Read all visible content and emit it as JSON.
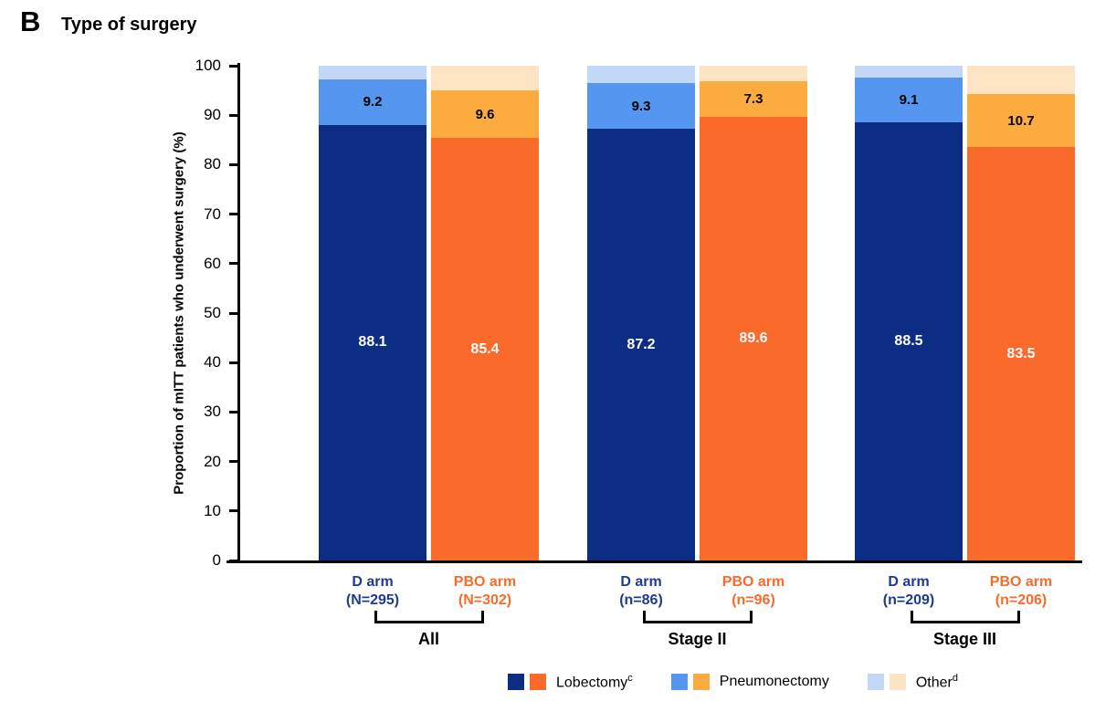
{
  "panel_label": "B",
  "title": "Type of surgery",
  "colors": {
    "d_lobectomy": "#0B2D84",
    "d_pneumonectomy": "#5596F0",
    "d_other": "#C3D7F7",
    "pbo_lobectomy": "#FA6A2B",
    "pbo_pneumonectomy": "#FCAC3E",
    "pbo_other": "#FDE4C4",
    "d_text": "#1E3A94",
    "pbo_text": "#FA6A2B",
    "axis": "#000000"
  },
  "chart_data": {
    "type": "bar",
    "stacked": true,
    "title": "Type of surgery",
    "xlabel": "",
    "ylabel": "Proportion of mITT patients who underwent surgery (%)",
    "ylim": [
      0,
      100
    ],
    "yticks": [
      0,
      10,
      20,
      30,
      40,
      50,
      60,
      70,
      80,
      90,
      100
    ],
    "grid": false,
    "legend_position": "bottom",
    "segments": [
      "Lobectomy",
      "Pneumonectomy",
      "Other"
    ],
    "groups": [
      {
        "label": "All",
        "bars": [
          {
            "arm": "D arm",
            "n": "(N=295)",
            "series": "D",
            "lobectomy": 88.1,
            "pneumonectomy": 9.2,
            "other": 2.7
          },
          {
            "arm": "PBO arm",
            "n": "(N=302)",
            "series": "PBO",
            "lobectomy": 85.4,
            "pneumonectomy": 9.6,
            "other": 5.0
          }
        ]
      },
      {
        "label": "Stage II",
        "bars": [
          {
            "arm": "D arm",
            "n": "(n=86)",
            "series": "D",
            "lobectomy": 87.2,
            "pneumonectomy": 9.3,
            "other": 3.5
          },
          {
            "arm": "PBO arm",
            "n": "(n=96)",
            "series": "PBO",
            "lobectomy": 89.6,
            "pneumonectomy": 7.3,
            "other": 3.1
          }
        ]
      },
      {
        "label": "Stage III",
        "bars": [
          {
            "arm": "D arm",
            "n": "(n=209)",
            "series": "D",
            "lobectomy": 88.5,
            "pneumonectomy": 9.1,
            "other": 2.4
          },
          {
            "arm": "PBO arm",
            "n": "(n=206)",
            "series": "PBO",
            "lobectomy": 83.5,
            "pneumonectomy": 10.7,
            "other": 5.8
          }
        ]
      }
    ],
    "legend": [
      {
        "label": "Lobectomy",
        "sup": "c"
      },
      {
        "label": "Pneumonectomy",
        "sup": ""
      },
      {
        "label": "Other",
        "sup": "d"
      }
    ]
  }
}
